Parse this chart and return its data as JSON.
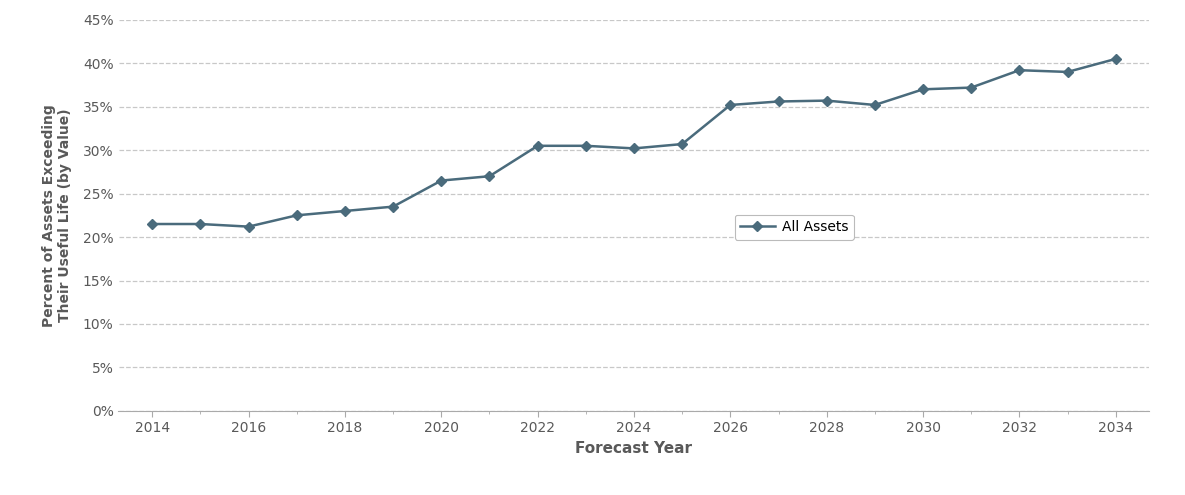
{
  "years": [
    2014,
    2015,
    2016,
    2017,
    2018,
    2019,
    2020,
    2021,
    2022,
    2023,
    2024,
    2025,
    2026,
    2027,
    2028,
    2029,
    2030,
    2031,
    2032,
    2033,
    2034
  ],
  "values": [
    0.215,
    0.215,
    0.212,
    0.225,
    0.23,
    0.235,
    0.265,
    0.27,
    0.305,
    0.305,
    0.302,
    0.307,
    0.352,
    0.356,
    0.357,
    0.352,
    0.37,
    0.372,
    0.392,
    0.39,
    0.405
  ],
  "line_color": "#4a6b7c",
  "marker": "D",
  "marker_size": 5,
  "line_width": 1.8,
  "xlabel": "Forecast Year",
  "ylabel": "Percent of Assets Exceeding\nTheir Useful Life (by Value)",
  "legend_label": "All Assets",
  "ylim": [
    0,
    0.45
  ],
  "yticks": [
    0.0,
    0.05,
    0.1,
    0.15,
    0.2,
    0.25,
    0.3,
    0.35,
    0.4,
    0.45
  ],
  "xticks": [
    2014,
    2016,
    2018,
    2020,
    2022,
    2024,
    2026,
    2028,
    2030,
    2032,
    2034
  ],
  "grid_color": "#c8c8c8",
  "background_color": "#ffffff",
  "xlabel_fontsize": 11,
  "ylabel_fontsize": 10,
  "tick_fontsize": 10,
  "label_color": "#595959",
  "spine_color": "#aaaaaa",
  "xlim_left": 2013.3,
  "xlim_right": 2034.7
}
